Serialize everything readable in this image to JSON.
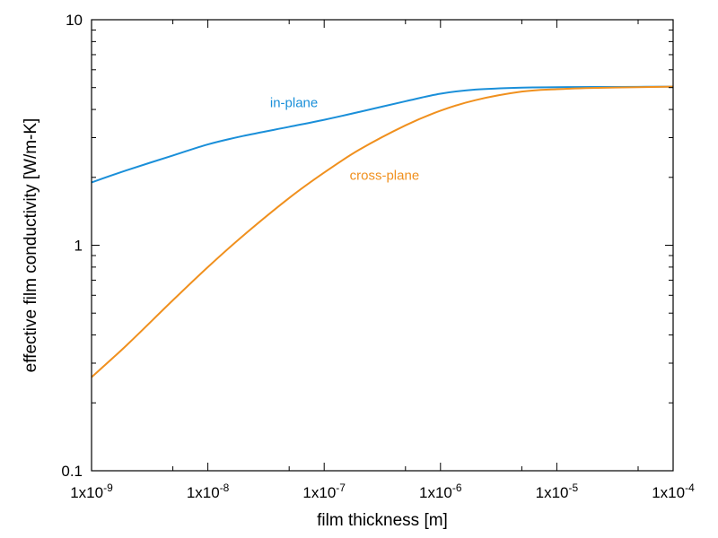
{
  "chart_data": {
    "type": "line",
    "x_scale": "log",
    "y_scale": "log",
    "xlabel": "film thickness [m]",
    "ylabel": "effective film conductivity [W/m-K]",
    "xlim": [
      1e-09,
      0.0001
    ],
    "ylim": [
      0.1,
      10
    ],
    "grid": false,
    "x_ticks": [
      {
        "value": 1e-09,
        "label": "1x10-9",
        "base": "1x10",
        "exp": "-9"
      },
      {
        "value": 1e-08,
        "label": "1x10-8",
        "base": "1x10",
        "exp": "-8"
      },
      {
        "value": 1e-07,
        "label": "1x10-7",
        "base": "1x10",
        "exp": "-7"
      },
      {
        "value": 1e-06,
        "label": "1x10-6",
        "base": "1x10",
        "exp": "-6"
      },
      {
        "value": 1e-05,
        "label": "1x10-5",
        "base": "1x10",
        "exp": "-5"
      },
      {
        "value": 0.0001,
        "label": "1x10-4",
        "base": "1x10",
        "exp": "-4"
      }
    ],
    "y_ticks": [
      {
        "value": 0.1,
        "label": "0.1"
      },
      {
        "value": 1,
        "label": "1"
      },
      {
        "value": 10,
        "label": "10"
      }
    ],
    "series": [
      {
        "name": "in-plane",
        "color": "#1a8fd9",
        "x": [
          1e-09,
          2e-09,
          5e-09,
          1e-08,
          2e-08,
          5e-08,
          1e-07,
          2e-07,
          5e-07,
          1e-06,
          2e-06,
          5e-06,
          1e-05,
          2e-05,
          5e-05,
          0.0001
        ],
        "y": [
          1.9,
          2.15,
          2.5,
          2.8,
          3.05,
          3.35,
          3.6,
          3.9,
          4.35,
          4.7,
          4.9,
          5.0,
          5.02,
          5.03,
          5.04,
          5.05
        ]
      },
      {
        "name": "cross-plane",
        "color": "#f0901e",
        "x": [
          1e-09,
          2e-09,
          5e-09,
          1e-08,
          2e-08,
          5e-08,
          1e-07,
          2e-07,
          5e-07,
          1e-06,
          2e-06,
          5e-06,
          1e-05,
          2e-05,
          5e-05,
          0.0001
        ],
        "y": [
          0.26,
          0.36,
          0.57,
          0.8,
          1.1,
          1.62,
          2.1,
          2.65,
          3.4,
          3.95,
          4.4,
          4.8,
          4.92,
          4.98,
          5.02,
          5.05
        ]
      }
    ],
    "annotations": [
      {
        "text": "in-plane",
        "series": "in-plane",
        "x": 5.5e-08,
        "y": 4.1
      },
      {
        "text": "cross-plane",
        "series": "cross-plane",
        "x": 3.3e-07,
        "y": 1.95
      }
    ]
  }
}
